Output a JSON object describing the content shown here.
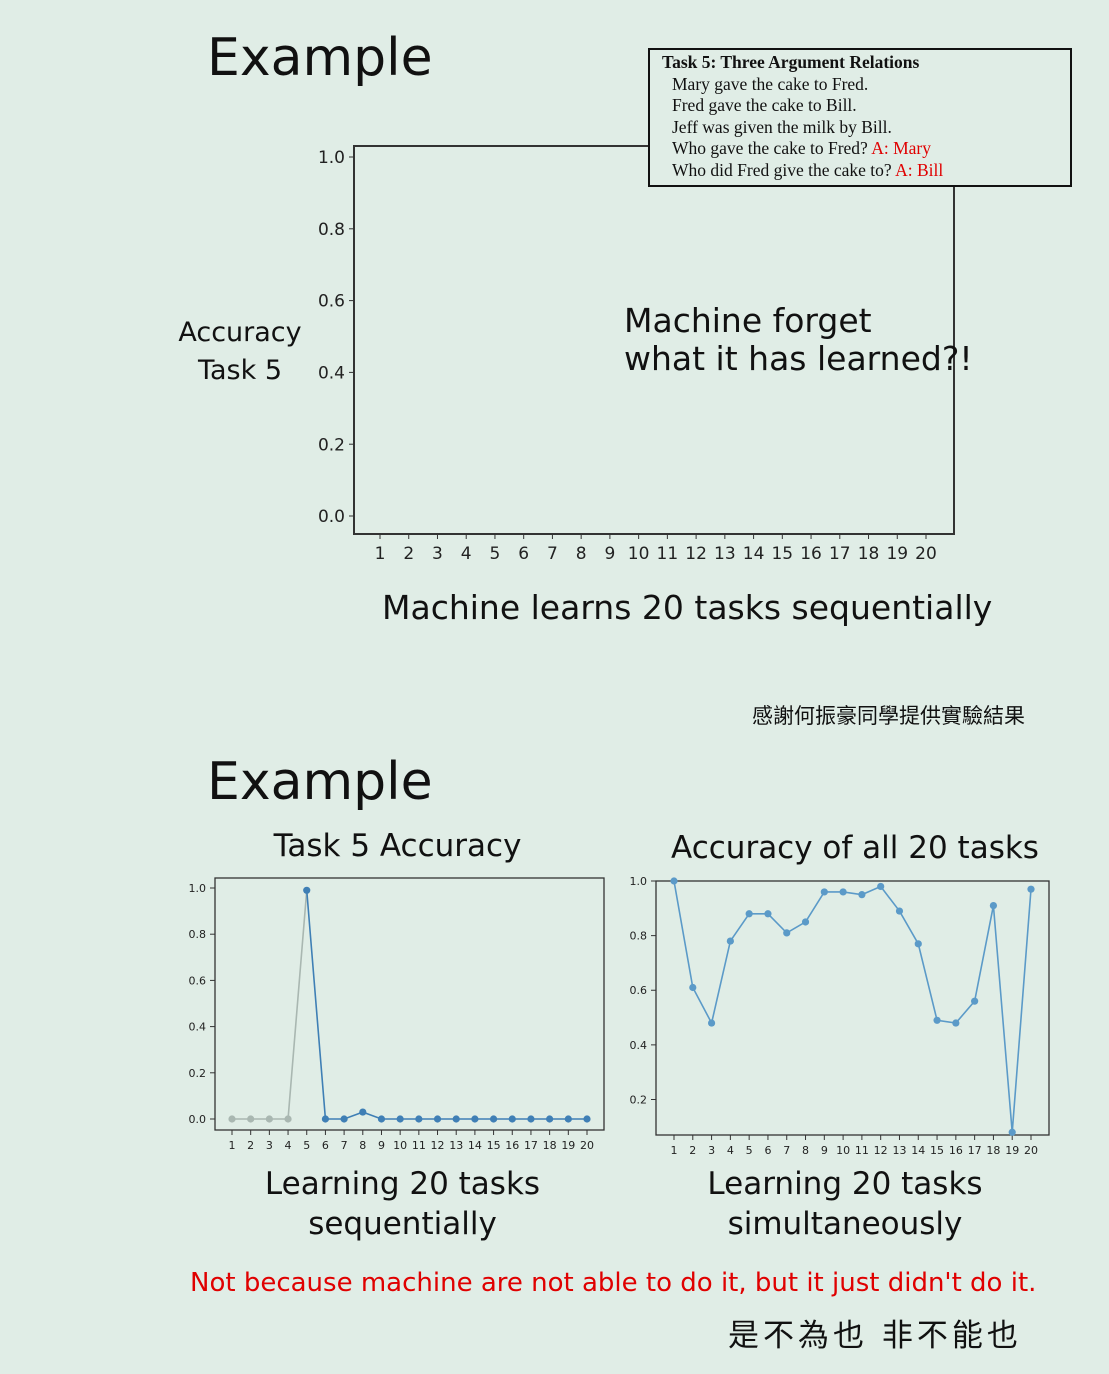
{
  "top": {
    "heading": "Example",
    "ylabel_line1": "Accuracy",
    "ylabel_line2": "Task 5",
    "annotation_line1": "Machine forget",
    "annotation_line2": "what it has learned?!",
    "xlabel": "Machine learns 20 tasks sequentially",
    "credit": "感謝何振豪同學提供實驗結果"
  },
  "task_box": {
    "title": "Task 5: Three Argument Relations",
    "lines": [
      {
        "text": "Mary gave the cake to Fred.",
        "answer": ""
      },
      {
        "text": "Fred gave the cake to Bill.",
        "answer": ""
      },
      {
        "text": "Jeff was given the milk by Bill.",
        "answer": ""
      },
      {
        "text": "Who gave the cake to Fred? ",
        "answer": "A: Mary"
      },
      {
        "text": "Who did Fred give the cake to? ",
        "answer": "A: Bill"
      }
    ]
  },
  "bottom": {
    "heading": "Example",
    "left_caption_line1": "Learning 20 tasks",
    "left_caption_line2": "sequentially",
    "right_caption_line1": "Learning 20 tasks",
    "right_caption_line2": "simultaneously",
    "conclusion": "Not because machine are not able to do it, but it just didn't do it.",
    "proverb": "是不為也 非不能也"
  },
  "chart_data": [
    {
      "type": "line",
      "title": "",
      "xlabel": "Machine learns 20 tasks sequentially",
      "ylabel": "Accuracy Task 5",
      "x": [
        1,
        2,
        3,
        4,
        5,
        6,
        7,
        8,
        9,
        10,
        11,
        12,
        13,
        14,
        15,
        16,
        17,
        18,
        19,
        20
      ],
      "ylim": [
        0,
        1.0
      ],
      "yticks": [
        "0.0",
        "0.2",
        "0.4",
        "0.6",
        "0.8",
        "1.0"
      ],
      "series": []
    },
    {
      "type": "line",
      "title": "Task 5 Accuracy",
      "xlabel": "Learning 20 tasks sequentially",
      "x": [
        1,
        2,
        3,
        4,
        5,
        6,
        7,
        8,
        9,
        10,
        11,
        12,
        13,
        14,
        15,
        16,
        17,
        18,
        19,
        20
      ],
      "ylim": [
        0,
        1.0
      ],
      "yticks": [
        "0.0",
        "0.2",
        "0.4",
        "0.6",
        "0.8",
        "1.0"
      ],
      "colors": {
        "before": "#a9b7b1",
        "after": "#3f7fb5"
      },
      "series": [
        {
          "values": [
            0,
            0,
            0,
            0,
            0.99,
            0,
            0,
            0.03,
            0,
            0,
            0,
            0,
            0,
            0,
            0,
            0,
            0,
            0,
            0,
            0
          ]
        }
      ]
    },
    {
      "type": "line",
      "title": "Accuracy of all 20 tasks",
      "xlabel": "Learning 20 tasks simultaneously",
      "x": [
        1,
        2,
        3,
        4,
        5,
        6,
        7,
        8,
        9,
        10,
        11,
        12,
        13,
        14,
        15,
        16,
        17,
        18,
        19,
        20
      ],
      "ylim": [
        0.07,
        1.0
      ],
      "yticks": [
        "0.2",
        "0.4",
        "0.6",
        "0.8",
        "1.0"
      ],
      "colors": {
        "line": "#5b9ac8"
      },
      "series": [
        {
          "values": [
            1.0,
            0.61,
            0.48,
            0.78,
            0.88,
            0.88,
            0.81,
            0.85,
            0.96,
            0.96,
            0.95,
            0.98,
            0.89,
            0.77,
            0.49,
            0.48,
            0.56,
            0.91,
            0.08,
            0.97
          ]
        }
      ]
    }
  ]
}
